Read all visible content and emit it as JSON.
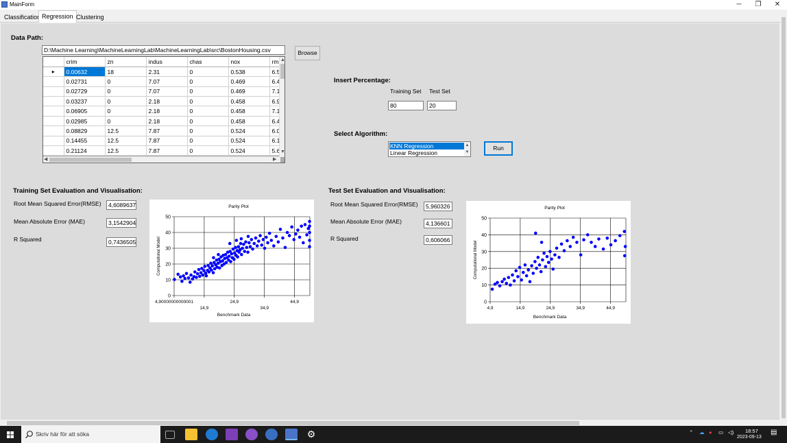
{
  "window": {
    "title": "MainForm",
    "minimize": "─",
    "maximize": "❐",
    "close": "✕"
  },
  "tabs": [
    "Classification",
    "Regression",
    "Clustering"
  ],
  "data_path": {
    "label": "Data Path:",
    "value": "D:\\Machine Learning\\MachineLearningLab\\MachineLearningLab\\src\\BostonHousing.csv",
    "browse_label": "Browse"
  },
  "grid": {
    "columns": [
      "crim",
      "zn",
      "indus",
      "chas",
      "nox",
      "rm"
    ],
    "rows": [
      [
        "0.00632",
        "18",
        "2.31",
        "0",
        "0.538",
        "6.5"
      ],
      [
        "0.02731",
        "0",
        "7.07",
        "0",
        "0.469",
        "6.4"
      ],
      [
        "0.02729",
        "0",
        "7.07",
        "0",
        "0.469",
        "7.1"
      ],
      [
        "0.03237",
        "0",
        "2.18",
        "0",
        "0.458",
        "6.9"
      ],
      [
        "0.06905",
        "0",
        "2.18",
        "0",
        "0.458",
        "7.1"
      ],
      [
        "0.02985",
        "0",
        "2.18",
        "0",
        "0.458",
        "6.4"
      ],
      [
        "0.08829",
        "12.5",
        "7.87",
        "0",
        "0.524",
        "6.0"
      ],
      [
        "0.14455",
        "12.5",
        "7.87",
        "0",
        "0.524",
        "6.1"
      ],
      [
        "0.21124",
        "12.5",
        "7.87",
        "0",
        "0.524",
        "5.6"
      ]
    ]
  },
  "percentage": {
    "label": "Insert Percentage:",
    "training_label": "Training Set",
    "test_label": "Test Set",
    "training_value": "80",
    "test_value": "20"
  },
  "algorithm": {
    "label": "Select Algorithm:",
    "options": [
      "KNN Regression",
      "Linear Regression"
    ],
    "selected": "KNN Regression",
    "run_label": "Run"
  },
  "training_eval": {
    "title": "Training Set Evaluation and Visualisation:",
    "rmse_label": "Root Mean Squared Error(RMSE)",
    "rmse_value": "4,6089637",
    "mae_label": "Mean Absolute Error (MAE)",
    "mae_value": "3,1542904",
    "r2_label": "R Squared",
    "r2_value": "0,7436505"
  },
  "test_eval": {
    "title": "Test Set Evaluation and Visualisation:",
    "rmse_label": "Root Mean Squared Error(RMSE)",
    "rmse_value": "5,960326",
    "mae_label": "Mean Absolute Error (MAE)",
    "mae_value": "4,136601",
    "r2_label": "R Squared",
    "r2_value": "0,606066"
  },
  "chart_data": [
    {
      "type": "scatter",
      "title": "Parity Plot",
      "xlabel": "Benchmark Data",
      "ylabel": "Computational Model",
      "x_tick_labels": [
        "4,90000000000001",
        "14,9",
        "24,9",
        "34,9",
        "44,9"
      ],
      "y_ticks": [
        0,
        10,
        20,
        30,
        40,
        50
      ],
      "xlim": [
        4.9,
        50
      ],
      "ylim": [
        0,
        50
      ],
      "grid": true,
      "color": "#0000ff",
      "points": [
        [
          5.0,
          10.2
        ],
        [
          6.2,
          13.5
        ],
        [
          7.0,
          11.8
        ],
        [
          7.5,
          9.0
        ],
        [
          8.0,
          12.5
        ],
        [
          8.5,
          10.8
        ],
        [
          9.0,
          14.0
        ],
        [
          9.7,
          11.2
        ],
        [
          10.2,
          8.5
        ],
        [
          10.5,
          13.0
        ],
        [
          11.0,
          10.5
        ],
        [
          11.5,
          12.0
        ],
        [
          11.8,
          15.0
        ],
        [
          12.3,
          11.5
        ],
        [
          12.7,
          13.8
        ],
        [
          13.1,
          16.5
        ],
        [
          13.4,
          12.2
        ],
        [
          13.8,
          14.5
        ],
        [
          14.1,
          17.2
        ],
        [
          14.4,
          13.0
        ],
        [
          14.8,
          15.8
        ],
        [
          15.1,
          18.5
        ],
        [
          15.4,
          14.2
        ],
        [
          15.6,
          12.5
        ],
        [
          16.0,
          16.0
        ],
        [
          16.2,
          19.0
        ],
        [
          16.5,
          15.0
        ],
        [
          16.8,
          17.5
        ],
        [
          17.1,
          20.5
        ],
        [
          17.3,
          16.2
        ],
        [
          17.6,
          18.8
        ],
        [
          17.9,
          14.5
        ],
        [
          18.2,
          21.0
        ],
        [
          18.4,
          17.0
        ],
        [
          18.7,
          19.5
        ],
        [
          19.0,
          22.5
        ],
        [
          19.2,
          18.0
        ],
        [
          19.5,
          20.5
        ],
        [
          19.8,
          23.0
        ],
        [
          20.0,
          17.5
        ],
        [
          20.3,
          21.5
        ],
        [
          20.5,
          24.5
        ],
        [
          20.8,
          19.0
        ],
        [
          21.0,
          22.0
        ],
        [
          21.2,
          25.5
        ],
        [
          21.5,
          20.0
        ],
        [
          21.7,
          23.5
        ],
        [
          22.0,
          26.0
        ],
        [
          22.2,
          21.0
        ],
        [
          22.5,
          24.0
        ],
        [
          22.7,
          27.5
        ],
        [
          23.0,
          22.5
        ],
        [
          23.2,
          25.0
        ],
        [
          23.5,
          28.0
        ],
        [
          23.7,
          21.5
        ],
        [
          24.0,
          26.5
        ],
        [
          24.2,
          24.0
        ],
        [
          24.5,
          29.5
        ],
        [
          24.8,
          23.0
        ],
        [
          25.0,
          27.0
        ],
        [
          25.3,
          30.5
        ],
        [
          25.5,
          25.5
        ],
        [
          25.8,
          28.5
        ],
        [
          26.0,
          24.5
        ],
        [
          26.3,
          31.0
        ],
        [
          26.5,
          27.5
        ],
        [
          26.8,
          29.0
        ],
        [
          27.0,
          33.0
        ],
        [
          27.3,
          26.0
        ],
        [
          27.6,
          30.0
        ],
        [
          28.0,
          32.5
        ],
        [
          28.3,
          28.0
        ],
        [
          28.7,
          34.0
        ],
        [
          29.0,
          30.5
        ],
        [
          29.4,
          27.5
        ],
        [
          29.8,
          33.5
        ],
        [
          30.2,
          31.0
        ],
        [
          30.6,
          35.5
        ],
        [
          31.0,
          29.5
        ],
        [
          31.5,
          33.0
        ],
        [
          32.0,
          36.5
        ],
        [
          32.5,
          31.5
        ],
        [
          33.0,
          34.5
        ],
        [
          33.5,
          38.0
        ],
        [
          34.0,
          32.0
        ],
        [
          34.5,
          35.5
        ],
        [
          35.0,
          30.0
        ],
        [
          35.5,
          37.0
        ],
        [
          36.0,
          33.5
        ],
        [
          36.6,
          39.5
        ],
        [
          37.2,
          35.0
        ],
        [
          38.0,
          31.5
        ],
        [
          38.8,
          37.5
        ],
        [
          39.5,
          34.0
        ],
        [
          40.2,
          42.0
        ],
        [
          41.0,
          36.5
        ],
        [
          41.8,
          30.5
        ],
        [
          42.5,
          40.0
        ],
        [
          43.2,
          38.0
        ],
        [
          44.0,
          43.5
        ],
        [
          44.7,
          35.5
        ],
        [
          45.3,
          39.0
        ],
        [
          46.0,
          41.5
        ],
        [
          46.6,
          37.0
        ],
        [
          47.2,
          44.0
        ],
        [
          47.8,
          33.5
        ],
        [
          48.4,
          45.0
        ],
        [
          49.0,
          38.5
        ],
        [
          49.5,
          42.5
        ],
        [
          49.9,
          35.0
        ],
        [
          49.9,
          47.0
        ],
        [
          49.9,
          40.0
        ],
        [
          49.9,
          31.0
        ],
        [
          49.9,
          44.0
        ],
        [
          23.4,
          33.0
        ],
        [
          25.6,
          35.0
        ],
        [
          27.2,
          36.0
        ],
        [
          29.5,
          37.5
        ],
        [
          19.6,
          26.0
        ],
        [
          18.0,
          24.0
        ]
      ]
    },
    {
      "type": "scatter",
      "title": "Parity Plot",
      "xlabel": "Benchmark Data",
      "ylabel": "Computational Model",
      "x_tick_labels": [
        "4,9",
        "14,9",
        "24,9",
        "34,9",
        "44,9"
      ],
      "y_ticks": [
        0,
        10,
        20,
        30,
        40,
        50
      ],
      "xlim": [
        4.9,
        50
      ],
      "ylim": [
        0,
        50
      ],
      "grid": true,
      "color": "#0000ff",
      "points": [
        [
          5.6,
          7.5
        ],
        [
          6.5,
          10.5
        ],
        [
          7.3,
          11.5
        ],
        [
          8.1,
          9.5
        ],
        [
          8.9,
          12.0
        ],
        [
          9.6,
          13.5
        ],
        [
          10.3,
          11.0
        ],
        [
          11.0,
          14.5
        ],
        [
          11.6,
          10.0
        ],
        [
          12.3,
          16.0
        ],
        [
          12.9,
          12.5
        ],
        [
          13.5,
          18.5
        ],
        [
          14.1,
          15.0
        ],
        [
          14.7,
          20.5
        ],
        [
          15.3,
          13.0
        ],
        [
          15.9,
          17.5
        ],
        [
          16.5,
          22.0
        ],
        [
          17.0,
          15.5
        ],
        [
          17.6,
          19.0
        ],
        [
          18.1,
          12.0
        ],
        [
          18.7,
          21.5
        ],
        [
          19.2,
          17.0
        ],
        [
          19.8,
          24.0
        ],
        [
          20.3,
          20.0
        ],
        [
          20.8,
          26.5
        ],
        [
          21.3,
          22.0
        ],
        [
          21.8,
          18.0
        ],
        [
          22.3,
          25.0
        ],
        [
          22.8,
          29.0
        ],
        [
          23.3,
          21.0
        ],
        [
          23.8,
          27.0
        ],
        [
          24.3,
          23.5
        ],
        [
          24.8,
          30.0
        ],
        [
          25.3,
          25.5
        ],
        [
          25.8,
          19.5
        ],
        [
          26.4,
          28.0
        ],
        [
          27.0,
          32.0
        ],
        [
          27.8,
          26.5
        ],
        [
          28.6,
          34.5
        ],
        [
          29.5,
          30.5
        ],
        [
          30.5,
          36.5
        ],
        [
          31.5,
          33.0
        ],
        [
          32.5,
          38.5
        ],
        [
          33.7,
          35.5
        ],
        [
          35.0,
          28.0
        ],
        [
          36.0,
          37.0
        ],
        [
          37.3,
          40.0
        ],
        [
          38.5,
          35.5
        ],
        [
          39.8,
          33.0
        ],
        [
          41.0,
          37.5
        ],
        [
          42.5,
          31.5
        ],
        [
          43.8,
          38.0
        ],
        [
          45.0,
          34.0
        ],
        [
          46.5,
          36.5
        ],
        [
          48.0,
          39.5
        ],
        [
          49.5,
          42.0
        ],
        [
          49.8,
          33.0
        ],
        [
          49.6,
          27.5
        ],
        [
          20.0,
          41.0
        ],
        [
          22.0,
          35.5
        ]
      ]
    }
  ],
  "taskbar": {
    "search_placeholder": "Skriv här för att söka",
    "time": "18:57",
    "date": "2023-09-13"
  }
}
